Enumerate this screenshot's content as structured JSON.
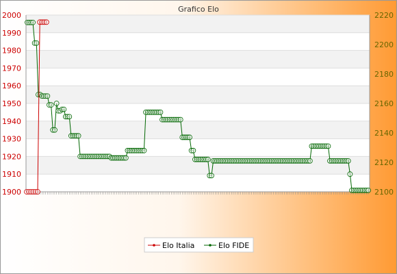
{
  "chart_data": {
    "type": "line",
    "title": "Grafico Elo",
    "xlabel": "",
    "ylabel_left": "",
    "ylabel_right": "",
    "y_left": {
      "min": 1900,
      "max": 2000,
      "ticks": [
        1900,
        1910,
        1920,
        1930,
        1940,
        1950,
        1960,
        1970,
        1980,
        1990,
        2000
      ]
    },
    "y_right": {
      "min": 2100,
      "max": 2220,
      "ticks": [
        2100,
        2120,
        2140,
        2160,
        2180,
        2200,
        2220
      ]
    },
    "grid": true,
    "legend_position": "bottom-center",
    "colors": {
      "elo_italia": "#cc0000",
      "elo_fide": "#006600",
      "tick_left": "#cc0000",
      "tick_right": "#666600",
      "band": "#f2f2f2",
      "grid": "#dddddd"
    },
    "series": [
      {
        "name": "Elo Italia",
        "axis": "left",
        "values": [
          1900,
          1900,
          1900,
          1900,
          1900,
          1900,
          1996,
          1996,
          1996,
          1996
        ]
      },
      {
        "name": "Elo FIDE",
        "axis": "right",
        "values": [
          2215,
          2215,
          2215,
          2215,
          2201,
          2201,
          2166,
          2166,
          2165,
          2165,
          2165,
          2165,
          2159,
          2159,
          2142,
          2142,
          2160,
          2155,
          2155,
          2156,
          2156,
          2151,
          2151,
          2151,
          2138,
          2138,
          2138,
          2138,
          2138,
          2124,
          2124,
          2124,
          2124,
          2124,
          2124,
          2124,
          2124,
          2124,
          2124,
          2124,
          2124,
          2124,
          2124,
          2124,
          2124,
          2124,
          2123,
          2123,
          2123,
          2123,
          2123,
          2123,
          2123,
          2123,
          2123,
          2128,
          2128,
          2128,
          2128,
          2128,
          2128,
          2128,
          2128,
          2128,
          2128,
          2154,
          2154,
          2154,
          2154,
          2154,
          2154,
          2154,
          2154,
          2154,
          2149,
          2149,
          2149,
          2149,
          2149,
          2149,
          2149,
          2149,
          2149,
          2149,
          2149,
          2137,
          2137,
          2137,
          2137,
          2137,
          2128,
          2128,
          2122,
          2122,
          2122,
          2122,
          2122,
          2122,
          2122,
          2122,
          2111,
          2111,
          2121,
          2121,
          2121,
          2121,
          2121,
          2121,
          2121,
          2121,
          2121,
          2121,
          2121,
          2121,
          2121,
          2121,
          2121,
          2121,
          2121,
          2121,
          2121,
          2121,
          2121,
          2121,
          2121,
          2121,
          2121,
          2121,
          2121,
          2121,
          2121,
          2121,
          2121,
          2121,
          2121,
          2121,
          2121,
          2121,
          2121,
          2121,
          2121,
          2121,
          2121,
          2121,
          2121,
          2121,
          2121,
          2121,
          2121,
          2121,
          2121,
          2121,
          2121,
          2121,
          2121,
          2121,
          2131,
          2131,
          2131,
          2131,
          2131,
          2131,
          2131,
          2131,
          2131,
          2131,
          2121,
          2121,
          2121,
          2121,
          2121,
          2121,
          2121,
          2121,
          2121,
          2121,
          2121,
          2112,
          2101,
          2101,
          2101,
          2101,
          2101,
          2101,
          2101,
          2101,
          2101,
          2101
        ]
      }
    ]
  }
}
